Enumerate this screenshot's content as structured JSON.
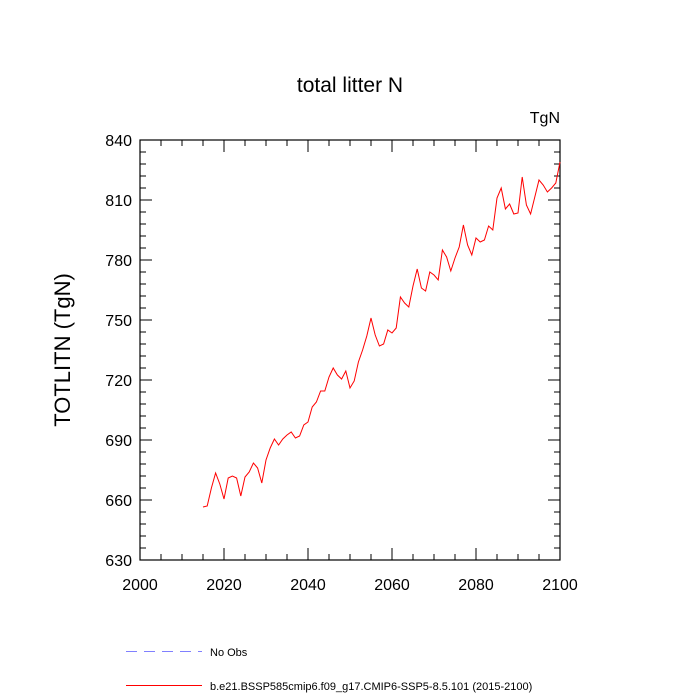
{
  "chart_data": {
    "type": "line",
    "title": "total litter N",
    "units_label": "TgN",
    "ylabel": "TOTLITN  (TgN)",
    "xlabel": "",
    "xlim": [
      2000,
      2100
    ],
    "ylim": [
      630,
      840
    ],
    "xticks": [
      2000,
      2020,
      2040,
      2060,
      2080,
      2100
    ],
    "yticks": [
      630,
      660,
      690,
      720,
      750,
      780,
      810,
      840
    ],
    "grid": false,
    "legend_position": "bottom",
    "series": [
      {
        "name": "No Obs",
        "color": "#8080ff",
        "style": "dashed",
        "x": [],
        "values": []
      },
      {
        "name": "b.e21.BSSP585cmip6.f09_g17.CMIP6-SSP5-8.5.101 (2015-2100)",
        "color": "#ff0000",
        "style": "solid",
        "x": [
          2015,
          2016,
          2017,
          2018,
          2019,
          2020,
          2021,
          2022,
          2023,
          2024,
          2025,
          2026,
          2027,
          2028,
          2029,
          2030,
          2031,
          2032,
          2033,
          2034,
          2035,
          2036,
          2037,
          2038,
          2039,
          2040,
          2041,
          2042,
          2043,
          2044,
          2045,
          2046,
          2047,
          2048,
          2049,
          2050,
          2051,
          2052,
          2053,
          2054,
          2055,
          2056,
          2057,
          2058,
          2059,
          2060,
          2061,
          2062,
          2063,
          2064,
          2065,
          2066,
          2067,
          2068,
          2069,
          2070,
          2071,
          2072,
          2073,
          2074,
          2075,
          2076,
          2077,
          2078,
          2079,
          2080,
          2081,
          2082,
          2083,
          2084,
          2085,
          2086,
          2087,
          2088,
          2089,
          2090,
          2091,
          2092,
          2093,
          2094,
          2095,
          2096,
          2097,
          2098,
          2099,
          2100
        ],
        "values": [
          656.5,
          657,
          666,
          673.5,
          668,
          660.5,
          671,
          672,
          671,
          662,
          671.5,
          674,
          678.5,
          676,
          668.5,
          680,
          686,
          690.5,
          687.5,
          690.5,
          692.5,
          694,
          691,
          692,
          697.5,
          699,
          706.5,
          709,
          714.5,
          714.5,
          721.5,
          726,
          722.5,
          720.5,
          724.5,
          716,
          719.5,
          729,
          735,
          742,
          751,
          742.5,
          737,
          738,
          745,
          743.5,
          746,
          761.5,
          758.5,
          756.5,
          767,
          775.5,
          766,
          764.5,
          774,
          772.5,
          770,
          785,
          781.5,
          774.5,
          781,
          786.5,
          797.5,
          787.5,
          782.5,
          791,
          789,
          790,
          797,
          795,
          811,
          816,
          805.5,
          808,
          803,
          803.5,
          821.5,
          807.5,
          803,
          811.5,
          820,
          817.5,
          814,
          816,
          818.5,
          829
        ]
      }
    ]
  }
}
